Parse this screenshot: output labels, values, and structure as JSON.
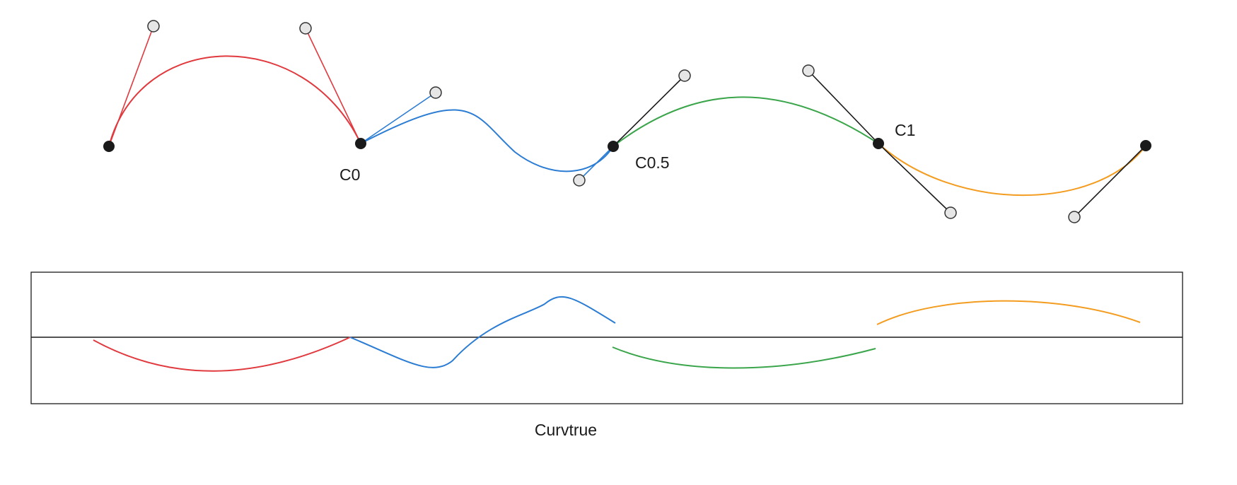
{
  "labels": {
    "c0": "C0",
    "c05": "C0.5",
    "c1": "C1",
    "caption": "Curvtrue"
  },
  "colors": {
    "red": "#e0393e",
    "blue": "#2b7cd3",
    "green": "#3aa54a",
    "orange": "#f39c1f",
    "handle": "#1a1a1a",
    "node_fill": "#1a1a1a",
    "control_fill": "#e6e6e6",
    "control_stroke": "#333333"
  }
}
